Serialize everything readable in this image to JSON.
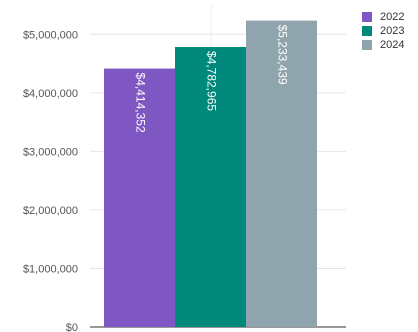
{
  "chart_data": {
    "type": "bar",
    "categories": [
      ""
    ],
    "series": [
      {
        "name": "2022",
        "values": [
          4414352
        ],
        "color": "#7e57c2",
        "label": "$4,414,352"
      },
      {
        "name": "2023",
        "values": [
          4782965
        ],
        "color": "#00897b",
        "label": "$4,782,965"
      },
      {
        "name": "2024",
        "values": [
          5233439
        ],
        "color": "#90a4ae",
        "label": "$5,233,439"
      }
    ],
    "y_ticks": [
      0,
      1000000,
      2000000,
      3000000,
      4000000,
      5000000
    ],
    "y_tick_labels": [
      "$0",
      "$1,000,000",
      "$2,000,000",
      "$3,000,000",
      "$4,000,000",
      "$5,000,000"
    ],
    "ylim": [
      0,
      5500000
    ],
    "grid": true,
    "legend_position": "top-right",
    "title": "",
    "xlabel": "",
    "ylabel": ""
  }
}
